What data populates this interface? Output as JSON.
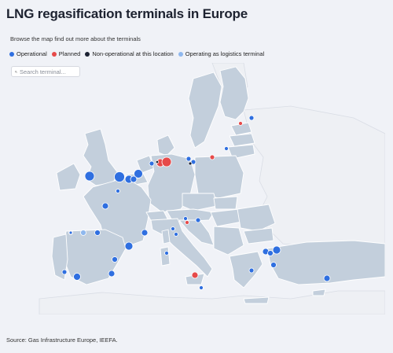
{
  "header": {
    "title": "LNG regasification terminals in Europe",
    "subtitle": "Browse the map find out more about the terminals"
  },
  "legend": [
    {
      "label": "Operational",
      "color": "#2f6fe0"
    },
    {
      "label": "Planned",
      "color": "#e64a4a"
    },
    {
      "label": "Non-operational at this location",
      "color": "#1c2233"
    },
    {
      "label": "Operating as logistics terminal",
      "color": "#8fb8ee"
    }
  ],
  "search": {
    "placeholder": "Search terminal..."
  },
  "source": "Source: Gas Infrastructure Europe, IEEFA.",
  "colors": {
    "highlighted_land": "#c3cfdc",
    "other_land": "#eef0f4",
    "sea": "#f0f2f7",
    "border": "#ffffff"
  }
}
